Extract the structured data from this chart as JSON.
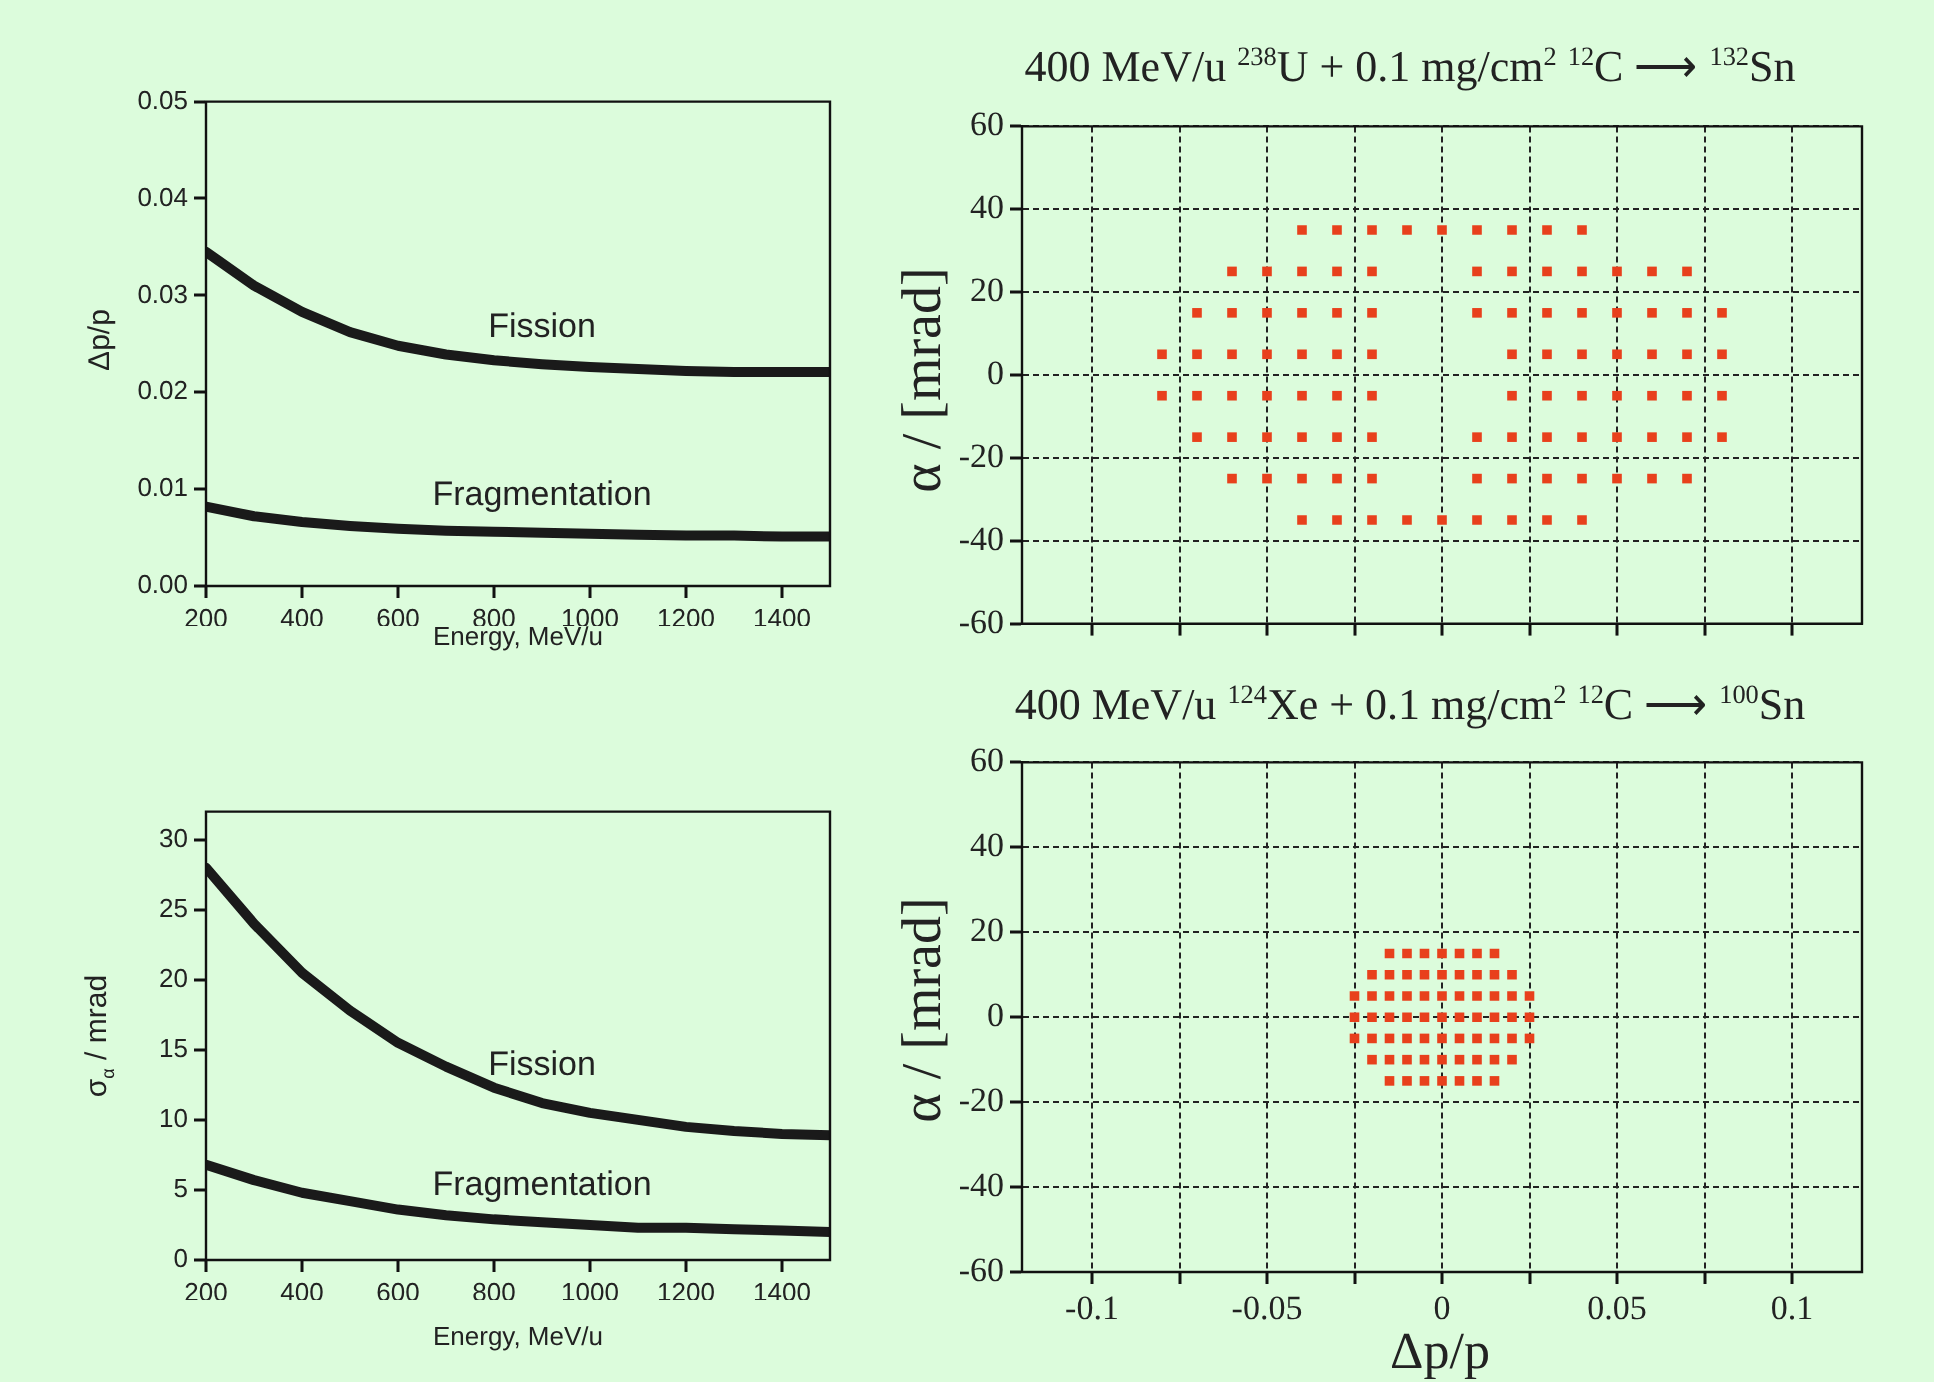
{
  "chart_data": [
    {
      "type": "line",
      "xlabel": "Energy, MeV/u",
      "ylabel": "Δp/p",
      "x": [
        200,
        300,
        400,
        500,
        600,
        700,
        800,
        900,
        1000,
        1100,
        1200,
        1300,
        1400,
        1500
      ],
      "series": [
        {
          "name": "Fission",
          "color": "#1a1a1a",
          "values": [
            0.0345,
            0.031,
            0.0283,
            0.0262,
            0.0248,
            0.0239,
            0.0233,
            0.0229,
            0.0226,
            0.0224,
            0.0222,
            0.0221,
            0.0221,
            0.0221
          ]
        },
        {
          "name": "Fragmentation",
          "color": "#1a1a1a",
          "values": [
            0.0082,
            0.0072,
            0.0066,
            0.0062,
            0.0059,
            0.0057,
            0.0056,
            0.0055,
            0.0054,
            0.0053,
            0.0052,
            0.0052,
            0.0051,
            0.0051
          ]
        }
      ],
      "xlim": [
        200,
        1500
      ],
      "xticks": [
        200,
        400,
        600,
        800,
        1000,
        1200,
        1400
      ],
      "ylim": [
        0,
        0.05
      ],
      "yticks": [
        {
          "value": 0,
          "label": "0.00"
        },
        0.01,
        0.02,
        0.03,
        0.04,
        0.05
      ],
      "grid": false,
      "marker": "none",
      "line_style": "solid"
    },
    {
      "type": "line",
      "xlabel": "Energy, MeV/u",
      "ylabel": "σ$_{α}$ / mrad",
      "x": [
        200,
        300,
        400,
        500,
        600,
        700,
        800,
        900,
        1000,
        1100,
        1200,
        1300,
        1400,
        1500
      ],
      "series": [
        {
          "name": "Fission",
          "color": "#1a1a1a",
          "values": [
            28,
            24,
            20.5,
            17.8,
            15.5,
            13.8,
            12.3,
            11.2,
            10.5,
            10,
            9.5,
            9.2,
            9,
            8.9
          ]
        },
        {
          "name": "Fragmentation",
          "color": "#1a1a1a",
          "values": [
            6.8,
            5.7,
            4.8,
            4.2,
            3.6,
            3.2,
            2.9,
            2.7,
            2.5,
            2.3,
            2.3,
            2.2,
            2.1,
            2
          ]
        }
      ],
      "xlim": [
        200,
        1500
      ],
      "xticks": [
        200,
        400,
        600,
        800,
        1000,
        1200,
        1400
      ],
      "ylim": [
        0,
        32
      ],
      "yticks": [
        0,
        5,
        10,
        15,
        20,
        25,
        30
      ],
      "grid": false,
      "marker": "none",
      "line_style": "solid"
    },
    {
      "type": "scatter",
      "title": "400 MeV/u  $^{238}$U + 0.1 mg/cm$^{2}$  $^{12}$C ⟶ $^{132}$Sn",
      "ylabel": "α / [mrad]",
      "series": [
        {
          "color": "#e8401c",
          "x": [
            -0.04,
            -0.03,
            -0.02,
            -0.01,
            0,
            0.01,
            0.02,
            0.03,
            0.04,
            -0.06,
            -0.05,
            -0.04,
            -0.03,
            -0.02,
            0.01,
            0.02,
            0.03,
            0.04,
            0.05,
            0.06,
            0.07,
            -0.07,
            -0.06,
            -0.05,
            -0.04,
            -0.03,
            -0.02,
            0.01,
            0.02,
            0.03,
            0.04,
            0.05,
            0.06,
            0.07,
            0.08,
            -0.08,
            -0.07,
            -0.06,
            -0.05,
            -0.04,
            -0.03,
            -0.02,
            0.02,
            0.03,
            0.04,
            0.05,
            0.06,
            0.07,
            0.08,
            -0.08,
            -0.07,
            -0.06,
            -0.05,
            -0.04,
            -0.03,
            -0.02,
            0.02,
            0.03,
            0.04,
            0.05,
            0.06,
            0.07,
            0.08,
            -0.07,
            -0.06,
            -0.05,
            -0.04,
            -0.03,
            -0.02,
            0.01,
            0.02,
            0.03,
            0.04,
            0.05,
            0.06,
            0.07,
            0.08,
            -0.06,
            -0.05,
            -0.04,
            -0.03,
            -0.02,
            0.01,
            0.02,
            0.03,
            0.04,
            0.05,
            0.06,
            0.07,
            -0.04,
            -0.03,
            -0.02,
            -0.01,
            0,
            0.01,
            0.02,
            0.03,
            0.04
          ],
          "values": [
            35,
            35,
            35,
            35,
            35,
            35,
            35,
            35,
            35,
            25,
            25,
            25,
            25,
            25,
            25,
            25,
            25,
            25,
            25,
            25,
            25,
            15,
            15,
            15,
            15,
            15,
            15,
            15,
            15,
            15,
            15,
            15,
            15,
            15,
            15,
            5,
            5,
            5,
            5,
            5,
            5,
            5,
            5,
            5,
            5,
            5,
            5,
            5,
            5,
            -5,
            -5,
            -5,
            -5,
            -5,
            -5,
            -5,
            -5,
            -5,
            -5,
            -5,
            -5,
            -5,
            -5,
            -15,
            -15,
            -15,
            -15,
            -15,
            -15,
            -15,
            -15,
            -15,
            -15,
            -15,
            -15,
            -15,
            -15,
            -25,
            -25,
            -25,
            -25,
            -25,
            -25,
            -25,
            -25,
            -25,
            -25,
            -25,
            -25,
            -35,
            -35,
            -35,
            -35,
            -35,
            -35,
            -35,
            -35,
            -35
          ]
        }
      ],
      "xlim": [
        -0.12,
        0.12
      ],
      "xticks": [
        -0.1,
        {
          "value": -0.075,
          "label": null
        },
        -0.05,
        {
          "value": -0.025,
          "label": null
        },
        0,
        {
          "value": 0.025,
          "label": null
        },
        0.05,
        {
          "value": 0.075,
          "label": null
        },
        0.1
      ],
      "ylim": [
        -60,
        60
      ],
      "yticks": [
        -60,
        -40,
        -20,
        0,
        20,
        40,
        60
      ],
      "grid": true,
      "marker": "square",
      "tick_labels": "y"
    },
    {
      "type": "scatter",
      "title": "400 MeV/u  $^{124}$Xe + 0.1 mg/cm$^{2}$  $^{12}$C ⟶ $^{100}$Sn",
      "xlabel": "Δp/p",
      "ylabel": "α / [mrad]",
      "series": [
        {
          "color": "#e8401c",
          "x": [
            -0.015,
            -0.01,
            -0.005,
            0,
            0.005,
            0.01,
            0.015,
            -0.02,
            -0.015,
            -0.01,
            -0.005,
            0,
            0.005,
            0.01,
            0.015,
            0.02,
            -0.025,
            -0.02,
            -0.015,
            -0.01,
            -0.005,
            0,
            0.005,
            0.01,
            0.015,
            0.02,
            0.025,
            -0.025,
            -0.02,
            -0.015,
            -0.01,
            -0.005,
            0,
            0.005,
            0.01,
            0.015,
            0.02,
            0.025,
            -0.025,
            -0.02,
            -0.015,
            -0.01,
            -0.005,
            0,
            0.005,
            0.01,
            0.015,
            0.02,
            0.025,
            -0.02,
            -0.015,
            -0.01,
            -0.005,
            0,
            0.005,
            0.01,
            0.015,
            0.02,
            -0.015,
            -0.01,
            -0.005,
            0,
            0.005,
            0.01,
            0.015
          ],
          "values": [
            15,
            15,
            15,
            15,
            15,
            15,
            15,
            10,
            10,
            10,
            10,
            10,
            10,
            10,
            10,
            10,
            5,
            5,
            5,
            5,
            5,
            5,
            5,
            5,
            5,
            5,
            5,
            0,
            0,
            0,
            0,
            0,
            0,
            0,
            0,
            0,
            0,
            0,
            -5,
            -5,
            -5,
            -5,
            -5,
            -5,
            -5,
            -5,
            -5,
            -5,
            -5,
            -10,
            -10,
            -10,
            -10,
            -10,
            -10,
            -10,
            -10,
            -10,
            -15,
            -15,
            -15,
            -15,
            -15,
            -15,
            -15
          ]
        }
      ],
      "xlim": [
        -0.12,
        0.12
      ],
      "xticks": [
        -0.1,
        {
          "value": -0.075,
          "label": null
        },
        -0.05,
        {
          "value": -0.025,
          "label": null
        },
        0,
        {
          "value": 0.025,
          "label": null
        },
        0.05,
        {
          "value": 0.075,
          "label": null
        },
        0.1
      ],
      "ylim": [
        -60,
        60
      ],
      "yticks": [
        -60,
        -40,
        -20,
        0,
        20,
        40,
        60
      ],
      "grid": true,
      "marker": "square"
    }
  ]
}
